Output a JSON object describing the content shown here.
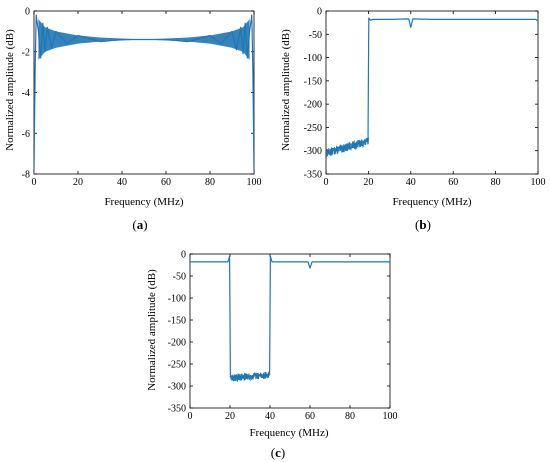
{
  "colors": {
    "line": "#1f77b4",
    "axis": "#000000",
    "background": "#ffffff"
  },
  "chart_data": [
    {
      "id": "a",
      "type": "line",
      "title": "",
      "caption": {
        "open": "(",
        "letter": "a",
        "close": ")"
      },
      "xlabel": "Frequency (MHz)",
      "ylabel": "Normalized amplitude (dB)",
      "xlim": [
        0,
        100
      ],
      "ylim": [
        -8,
        0
      ],
      "xticks": [
        0,
        20,
        40,
        60,
        80,
        100
      ],
      "yticks": [
        0,
        -2,
        -4,
        -6,
        -8
      ],
      "grid": false,
      "series": [
        {
          "description_of_shape": "passband ripple",
          "x": [
            0,
            0.5,
            1,
            2,
            3,
            4,
            5,
            6,
            8,
            10,
            15,
            20,
            30,
            40,
            50,
            60,
            70,
            80,
            85,
            90,
            92,
            94,
            95,
            96,
            97,
            98,
            99,
            99.5,
            100
          ],
          "y": [
            -8.0,
            -3.0,
            -0.2,
            -1.0,
            -2.3,
            -0.6,
            -2.0,
            -0.8,
            -1.8,
            -1.0,
            -1.6,
            -1.2,
            -1.5,
            -1.4,
            -1.4,
            -1.4,
            -1.5,
            -1.2,
            -1.6,
            -1.0,
            -1.9,
            -0.8,
            -2.1,
            -0.6,
            -2.3,
            -1.0,
            -0.2,
            -3.0,
            -8.0
          ],
          "envelope": {
            "x": [
              2,
              5,
              10,
              20,
              30,
              40,
              50,
              60,
              70,
              80,
              90,
              95,
              98
            ],
            "upper": [
              -0.4,
              -0.8,
              -1.0,
              -1.2,
              -1.3,
              -1.35,
              -1.4,
              -1.35,
              -1.3,
              -1.2,
              -1.0,
              -0.8,
              -0.4
            ],
            "lower": [
              -2.4,
              -2.0,
              -1.8,
              -1.6,
              -1.5,
              -1.45,
              -1.4,
              -1.45,
              -1.5,
              -1.6,
              -1.8,
              -2.0,
              -2.4
            ]
          }
        }
      ]
    },
    {
      "id": "b",
      "type": "line",
      "title": "",
      "caption": {
        "open": "(",
        "letter": "b",
        "close": ")"
      },
      "xlabel": "Frequency (MHz)",
      "ylabel": "Normalized amplitude (dB)",
      "xlim": [
        0,
        100
      ],
      "ylim": [
        -350,
        0
      ],
      "xticks": [
        0,
        20,
        40,
        60,
        80,
        100
      ],
      "yticks": [
        0,
        -50,
        -100,
        -150,
        -200,
        -250,
        -300,
        -350
      ],
      "grid": false,
      "series": [
        {
          "x": [
            0,
            2,
            5,
            10,
            15,
            19.5,
            19.8,
            20.2,
            21,
            22,
            30,
            39,
            40,
            41,
            50,
            60,
            70,
            80,
            90,
            99,
            100
          ],
          "y": [
            -305,
            -300,
            -295,
            -288,
            -283,
            -280,
            -280,
            -15,
            -20,
            -18,
            -18,
            -17,
            -35,
            -17,
            -18,
            -18,
            -18,
            -18,
            -18,
            -18,
            -22
          ],
          "noise_band": {
            "x_from": 0,
            "x_to": 20,
            "center_start": -305,
            "center_end": -280,
            "spread": 18
          }
        }
      ]
    },
    {
      "id": "c",
      "type": "line",
      "title": "",
      "caption": {
        "open": "(",
        "letter": "c",
        "close": ")"
      },
      "xlabel": "Frequency (MHz)",
      "ylabel": "Normalized amplitude (dB)",
      "xlim": [
        0,
        100
      ],
      "ylim": [
        -350,
        0
      ],
      "xticks": [
        0,
        20,
        40,
        60,
        80,
        100
      ],
      "yticks": [
        0,
        -50,
        -100,
        -150,
        -200,
        -250,
        -300,
        -350
      ],
      "grid": false,
      "series": [
        {
          "x": [
            0,
            5,
            10,
            15,
            19,
            19.8,
            20.2,
            21,
            39,
            39.8,
            40.2,
            41,
            50,
            59,
            60,
            61,
            70,
            80,
            90,
            100
          ],
          "y": [
            -18,
            -18,
            -18,
            -18,
            -18,
            -5,
            -280,
            -280,
            -275,
            -275,
            -5,
            -18,
            -18,
            -18,
            -32,
            -18,
            -18,
            -18,
            -18,
            -18
          ],
          "noise_band": {
            "x_from": 20.5,
            "x_to": 39.5,
            "center_start": -282,
            "center_end": -275,
            "spread": 16
          }
        }
      ]
    }
  ]
}
